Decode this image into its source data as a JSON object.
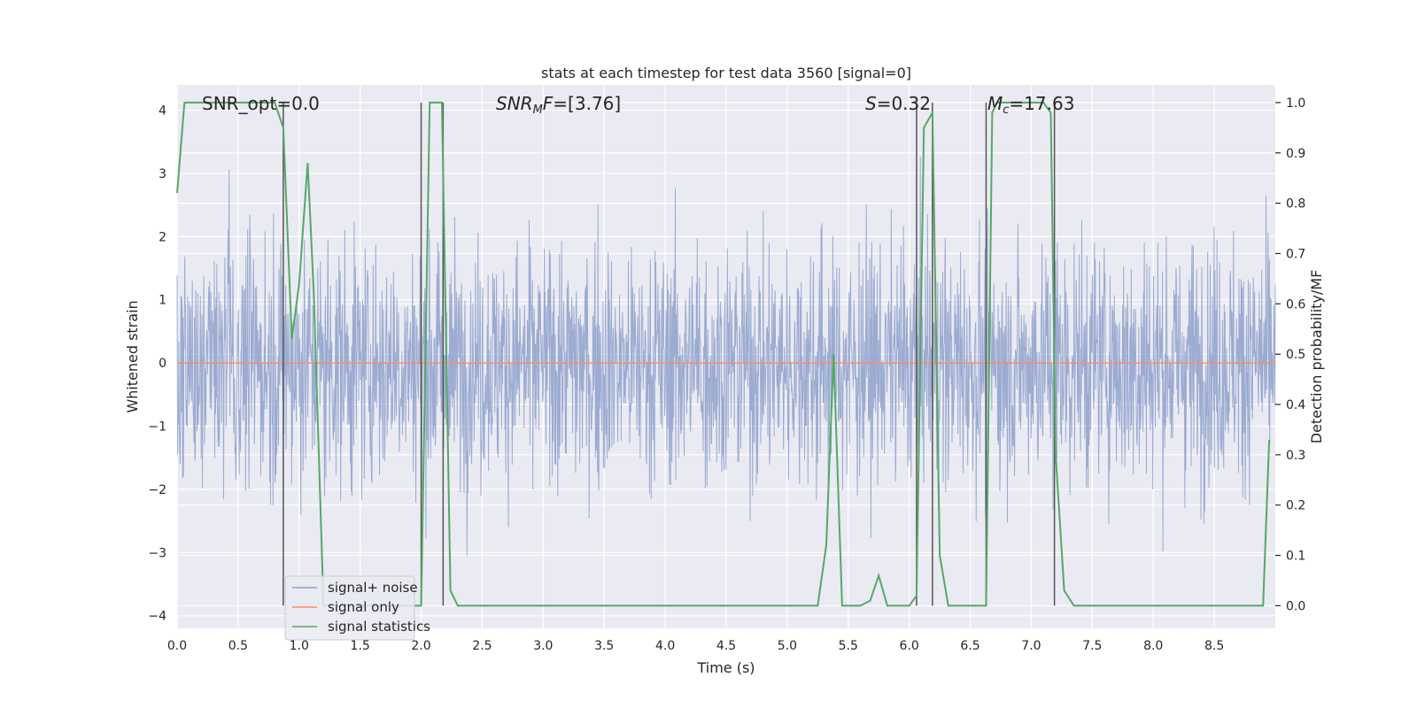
{
  "chart_data": {
    "type": "line",
    "title": "stats at each timestep for test data 3560 [signal=0]",
    "xlabel": "Time (s)",
    "ylabel_left": "Whitened strain",
    "ylabel_right": "Detection probability/MF",
    "xlim": [
      0.0,
      9.0
    ],
    "ylim_left": [
      -4.2,
      4.4
    ],
    "ylim_right": [
      -0.045,
      1.035
    ],
    "x_ticks": [
      "0.0",
      "0.5",
      "1.0",
      "1.5",
      "2.0",
      "2.5",
      "3.0",
      "3.5",
      "4.0",
      "4.5",
      "5.0",
      "5.5",
      "6.0",
      "6.5",
      "7.0",
      "7.5",
      "8.0",
      "8.5"
    ],
    "y_ticks_left": [
      "−4",
      "−3",
      "−2",
      "−1",
      "0",
      "1",
      "2",
      "3",
      "4"
    ],
    "y_ticks_right": [
      "0.0",
      "0.1",
      "0.2",
      "0.3",
      "0.4",
      "0.5",
      "0.6",
      "0.7",
      "0.8",
      "0.9",
      "1.0"
    ],
    "grid": true,
    "legend_position": "lower-left",
    "annotations": [
      {
        "text": "SNR_opt=0.0",
        "x": 0.2
      },
      {
        "text": "SNR_MF=[3.76]",
        "x": 2.6
      },
      {
        "text": "S=0.32",
        "x": 5.6
      },
      {
        "text": "M_c=17.63",
        "x": 6.6
      }
    ],
    "series": [
      {
        "name": "signal+ noise",
        "color": "#8da0cb",
        "axis": "left",
        "kind": "noise",
        "x_range": [
          0.0,
          9.0
        ],
        "amplitude_envelope": 3.9
      },
      {
        "name": "signal only",
        "color": "#fc8d62",
        "axis": "left",
        "x": [
          0.0,
          9.0
        ],
        "y": [
          0.0,
          0.0
        ]
      },
      {
        "name": "signal statistics",
        "color": "#55a868",
        "axis": "right",
        "x": [
          0.0,
          0.06,
          0.12,
          0.2,
          0.3,
          0.4,
          0.5,
          0.6,
          0.7,
          0.8,
          0.87,
          0.94,
          1.0,
          1.07,
          1.12,
          1.2,
          1.3,
          1.4,
          1.5,
          1.6,
          1.7,
          1.8,
          1.9,
          2.0,
          2.07,
          2.13,
          2.17,
          2.24,
          2.3,
          2.5,
          3.0,
          3.5,
          4.0,
          4.5,
          5.0,
          5.25,
          5.32,
          5.38,
          5.45,
          5.5,
          5.6,
          5.68,
          5.75,
          5.82,
          5.9,
          6.0,
          6.06,
          6.12,
          6.19,
          6.25,
          6.32,
          6.4,
          6.5,
          6.6,
          6.63,
          6.68,
          6.72,
          6.8,
          6.9,
          7.0,
          7.1,
          7.16,
          7.2,
          7.27,
          7.35,
          7.5,
          8.0,
          8.5,
          8.9,
          8.95
        ],
        "y": [
          0.82,
          1.0,
          1.0,
          1.0,
          1.0,
          1.0,
          1.0,
          1.0,
          1.0,
          1.0,
          0.95,
          0.53,
          0.64,
          0.88,
          0.62,
          0.0,
          0.0,
          0.0,
          0.0,
          0.0,
          0.0,
          0.0,
          0.0,
          0.0,
          1.0,
          1.0,
          1.0,
          0.03,
          0.0,
          0.0,
          0.0,
          0.0,
          0.0,
          0.0,
          0.0,
          0.0,
          0.12,
          0.5,
          0.0,
          0.0,
          0.0,
          0.01,
          0.06,
          0.0,
          0.0,
          0.0,
          0.02,
          0.95,
          0.98,
          0.1,
          0.0,
          0.0,
          0.0,
          0.0,
          0.0,
          0.98,
          1.0,
          1.0,
          1.0,
          1.0,
          1.0,
          0.98,
          0.3,
          0.03,
          0.0,
          0.0,
          0.0,
          0.0,
          0.0,
          0.33
        ]
      }
    ],
    "vertical_lines_x": [
      0.87,
      2.0,
      2.18,
      6.06,
      6.19,
      6.63,
      7.19
    ],
    "legend": [
      {
        "label": "signal+ noise",
        "color": "#8da0cb"
      },
      {
        "label": "signal only",
        "color": "#fc8d62"
      },
      {
        "label": "signal statistics",
        "color": "#55a868"
      }
    ]
  }
}
